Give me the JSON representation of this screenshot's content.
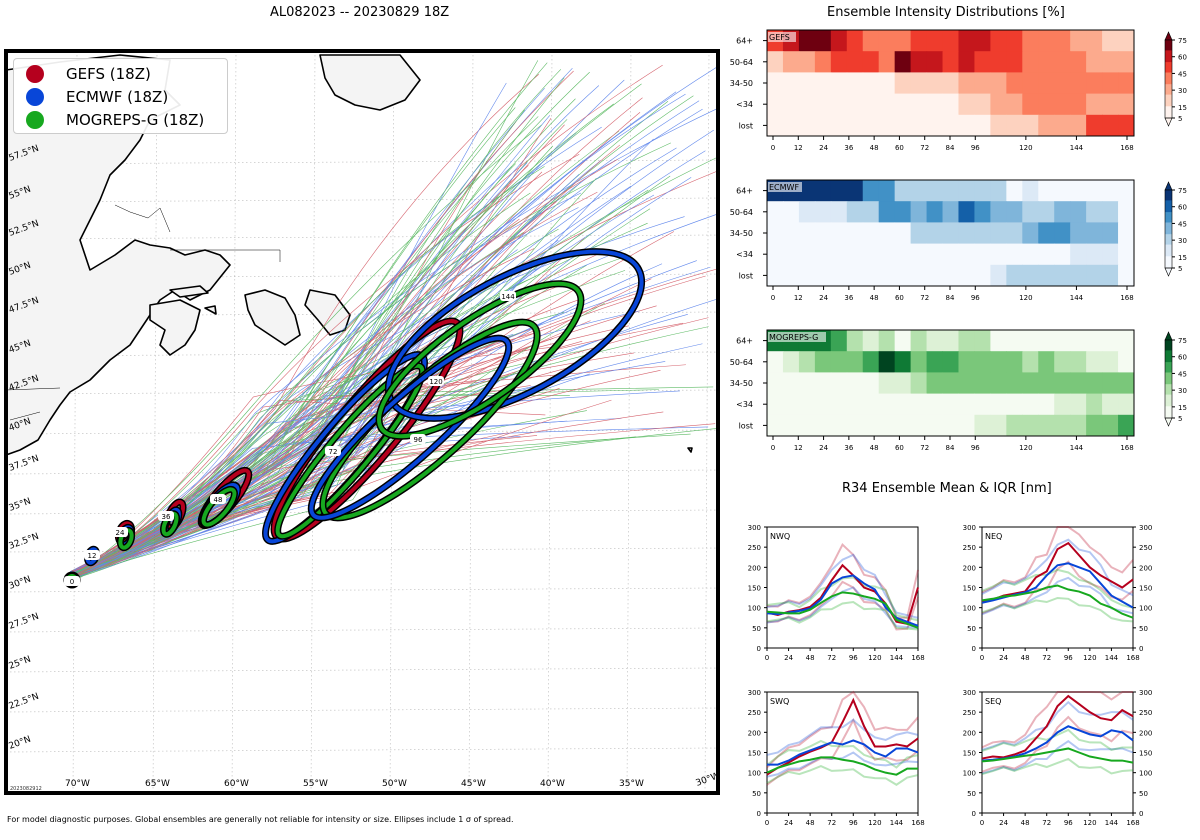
{
  "figure": {
    "main_title": "AL082023 -- 20230829 18Z",
    "dist_title": "Ensemble Intensity Distributions [%]",
    "r34_title": "R34 Ensemble Mean & IQR [nm]",
    "footer": "For model diagnostic purposes. Global ensembles are generally not reliable for intensity or size. Ellipses include 1 σ of spread.",
    "map_stamp": "2023082912"
  },
  "map": {
    "legend": [
      {
        "label": "GEFS (18Z)",
        "color": "#b5001e"
      },
      {
        "label": "ECMWF (18Z)",
        "color": "#0846d8"
      },
      {
        "label": "MOGREPS-G (18Z)",
        "color": "#17a81f"
      }
    ],
    "lat_labels": [
      "57.5°N",
      "55°N",
      "52.5°N",
      "50°N",
      "47.5°N",
      "45°N",
      "42.5°N",
      "40°N",
      "37.5°N",
      "35°N",
      "32.5°N",
      "30°N",
      "27.5°N",
      "25°N",
      "22.5°N",
      "20°N"
    ],
    "lon_labels": [
      "70°W",
      "65°W",
      "60°W",
      "55°W",
      "50°W",
      "45°W",
      "40°W",
      "35°W",
      "30°W"
    ],
    "ellipse_labels": [
      "0",
      "12",
      "24",
      "36",
      "48",
      "72",
      "96",
      "120",
      "144"
    ],
    "land": "#f5f5f5",
    "ocean": "#ffffff"
  },
  "chart_data": [
    {
      "type": "heatmap",
      "id": "gefs",
      "label": "GEFS",
      "cmap": "Reds",
      "x_ticks": [
        "0",
        "12",
        "24",
        "36",
        "48",
        "60",
        "72",
        "84",
        "96",
        "120",
        "144",
        "168"
      ],
      "y_categories": [
        "64+",
        "50-64",
        "34-50",
        "<34",
        "lost"
      ],
      "colorbar_ticks": [
        "5",
        "15",
        "30",
        "45",
        "60",
        "75"
      ]
    },
    {
      "type": "heatmap",
      "id": "ecmwf",
      "label": "ECMWF",
      "cmap": "Blues",
      "x_ticks": [
        "0",
        "12",
        "24",
        "36",
        "48",
        "60",
        "72",
        "84",
        "96",
        "120",
        "144",
        "168"
      ],
      "y_categories": [
        "64+",
        "50-64",
        "34-50",
        "<34",
        "lost"
      ],
      "colorbar_ticks": [
        "5",
        "15",
        "30",
        "45",
        "60",
        "75"
      ]
    },
    {
      "type": "heatmap",
      "id": "mogreps",
      "label": "MOGREPS-G",
      "cmap": "Greens",
      "x_ticks": [
        "0",
        "12",
        "24",
        "36",
        "48",
        "60",
        "72",
        "84",
        "96",
        "120",
        "144",
        "168"
      ],
      "y_categories": [
        "64+",
        "50-64",
        "34-50",
        "<34",
        "lost"
      ],
      "colorbar_ticks": [
        "5",
        "15",
        "30",
        "45",
        "60",
        "75"
      ]
    },
    {
      "type": "line",
      "id": "r34-nwq",
      "label": "NWQ",
      "xlim": [
        0,
        168
      ],
      "ylim": [
        0,
        300
      ],
      "x_ticks": [
        "0",
        "24",
        "48",
        "72",
        "96",
        "120",
        "144",
        "168"
      ],
      "y_ticks": [
        "0",
        "50",
        "100",
        "150",
        "200",
        "250",
        "300"
      ],
      "x": [
        0,
        12,
        24,
        36,
        48,
        60,
        72,
        84,
        96,
        108,
        120,
        132,
        144,
        156,
        168
      ],
      "series": [
        {
          "color": "#b5001e",
          "values": [
            88,
            82,
            90,
            94,
            102,
            125,
            168,
            205,
            180,
            150,
            140,
            110,
            65,
            60,
            150
          ]
        },
        {
          "color": "#0846d8",
          "values": [
            86,
            84,
            88,
            92,
            98,
            120,
            160,
            175,
            180,
            160,
            145,
            100,
            75,
            65,
            55
          ]
        },
        {
          "color": "#17a81f",
          "values": [
            90,
            88,
            86,
            86,
            95,
            112,
            128,
            138,
            135,
            128,
            122,
            110,
            70,
            60,
            50
          ]
        }
      ]
    },
    {
      "type": "line",
      "id": "r34-neq",
      "label": "NEQ",
      "xlim": [
        0,
        168
      ],
      "ylim": [
        0,
        300
      ],
      "x_ticks": [
        "0",
        "24",
        "48",
        "72",
        "96",
        "120",
        "144",
        "168"
      ],
      "y_ticks": [
        "0",
        "50",
        "100",
        "150",
        "200",
        "250",
        "300"
      ],
      "x": [
        0,
        12,
        24,
        36,
        48,
        60,
        72,
        84,
        96,
        108,
        120,
        132,
        144,
        156,
        168
      ],
      "series": [
        {
          "color": "#b5001e",
          "values": [
            115,
            120,
            130,
            135,
            140,
            175,
            190,
            245,
            260,
            230,
            200,
            180,
            165,
            150,
            170
          ]
        },
        {
          "color": "#0846d8",
          "values": [
            112,
            118,
            125,
            132,
            138,
            150,
            180,
            205,
            210,
            200,
            190,
            160,
            130,
            115,
            100
          ]
        },
        {
          "color": "#17a81f",
          "values": [
            118,
            122,
            128,
            130,
            135,
            140,
            150,
            155,
            145,
            140,
            130,
            110,
            100,
            85,
            75
          ]
        }
      ]
    },
    {
      "type": "line",
      "id": "r34-swq",
      "label": "SWQ",
      "xlim": [
        0,
        168
      ],
      "ylim": [
        0,
        300
      ],
      "x_ticks": [
        "0",
        "24",
        "48",
        "72",
        "96",
        "120",
        "144",
        "168"
      ],
      "y_ticks": [
        "0",
        "50",
        "100",
        "150",
        "200",
        "250",
        "300"
      ],
      "x": [
        0,
        12,
        24,
        36,
        48,
        60,
        72,
        84,
        96,
        108,
        120,
        132,
        144,
        156,
        168
      ],
      "series": [
        {
          "color": "#b5001e",
          "values": [
            95,
            112,
            125,
            140,
            152,
            162,
            175,
            225,
            280,
            215,
            165,
            165,
            170,
            165,
            185
          ]
        },
        {
          "color": "#0846d8",
          "values": [
            120,
            120,
            130,
            145,
            155,
            165,
            175,
            170,
            180,
            170,
            150,
            140,
            160,
            160,
            150
          ]
        },
        {
          "color": "#17a81f",
          "values": [
            100,
            112,
            120,
            128,
            132,
            138,
            138,
            132,
            128,
            120,
            108,
            100,
            95,
            110,
            110
          ]
        }
      ]
    },
    {
      "type": "line",
      "id": "r34-seq",
      "label": "SEQ",
      "xlim": [
        0,
        168
      ],
      "ylim": [
        0,
        300
      ],
      "x_ticks": [
        "0",
        "24",
        "48",
        "72",
        "96",
        "120",
        "144",
        "168"
      ],
      "y_ticks": [
        "0",
        "50",
        "100",
        "150",
        "200",
        "250",
        "300"
      ],
      "x": [
        0,
        12,
        24,
        36,
        48,
        60,
        72,
        84,
        96,
        108,
        120,
        132,
        144,
        156,
        168
      ],
      "series": [
        {
          "color": "#b5001e",
          "values": [
            135,
            140,
            138,
            145,
            155,
            185,
            215,
            265,
            290,
            270,
            250,
            235,
            230,
            255,
            240
          ]
        },
        {
          "color": "#0846d8",
          "values": [
            130,
            132,
            135,
            140,
            148,
            160,
            175,
            200,
            215,
            205,
            195,
            190,
            205,
            200,
            180
          ]
        },
        {
          "color": "#17a81f",
          "values": [
            128,
            130,
            134,
            138,
            142,
            145,
            150,
            155,
            160,
            150,
            140,
            135,
            130,
            130,
            125
          ]
        }
      ]
    }
  ]
}
